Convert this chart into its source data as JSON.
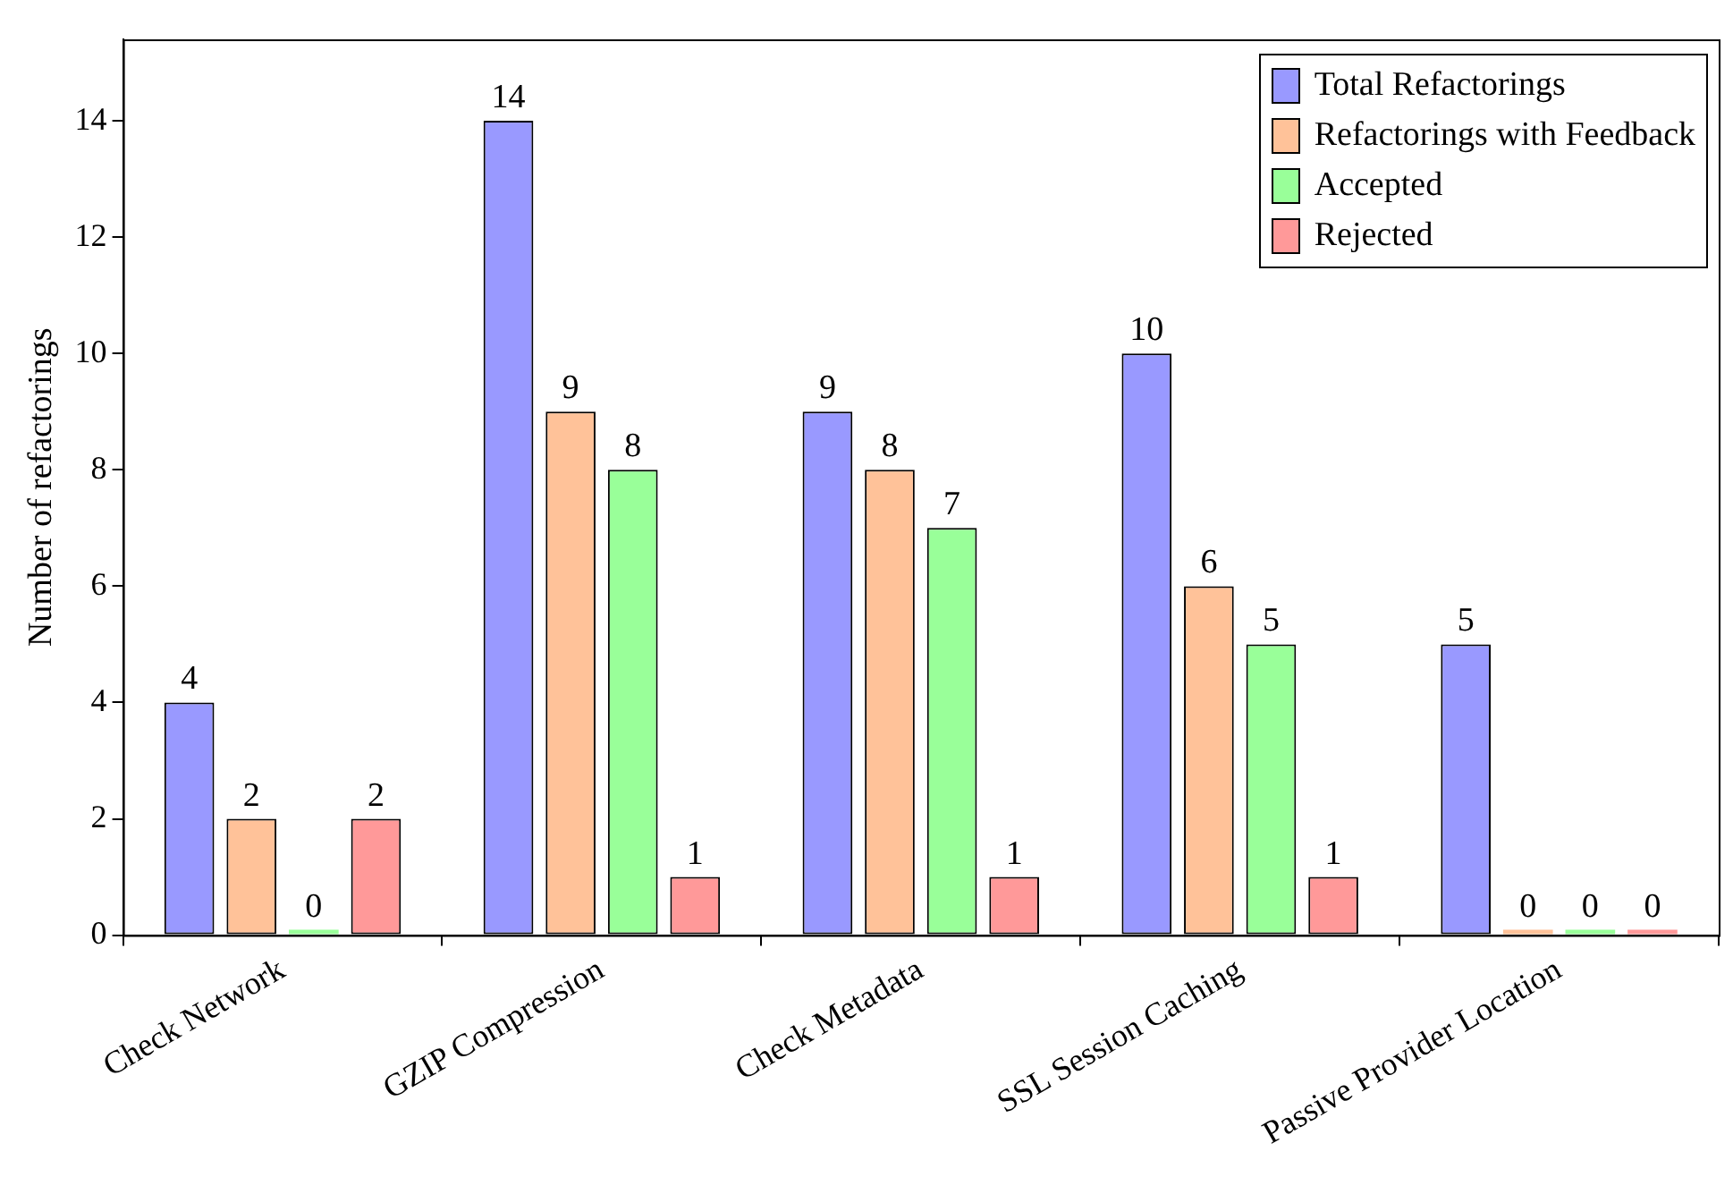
{
  "chart_data": {
    "type": "bar",
    "ylabel": "Number of refactorings",
    "categories": [
      "Check Network",
      "GZIP Compression",
      "Check Metadata",
      "SSL Session Caching",
      "Passive Provider Location"
    ],
    "series": [
      {
        "name": "Total Refactorings",
        "color": "#9999ff",
        "values": [
          4,
          14,
          9,
          10,
          5
        ]
      },
      {
        "name": "Refactorings with Feedback",
        "color": "#ffc299",
        "values": [
          2,
          9,
          8,
          6,
          0
        ]
      },
      {
        "name": "Accepted",
        "color": "#99ff99",
        "values": [
          0,
          8,
          7,
          5,
          0
        ]
      },
      {
        "name": "Rejected",
        "color": "#ff9999",
        "values": [
          2,
          1,
          1,
          1,
          0
        ]
      }
    ],
    "ylim": [
      0,
      15.4
    ],
    "yticks": [
      0,
      2,
      4,
      6,
      8,
      10,
      12,
      14
    ],
    "data_labels": true,
    "legend": "top right",
    "grid": false
  }
}
